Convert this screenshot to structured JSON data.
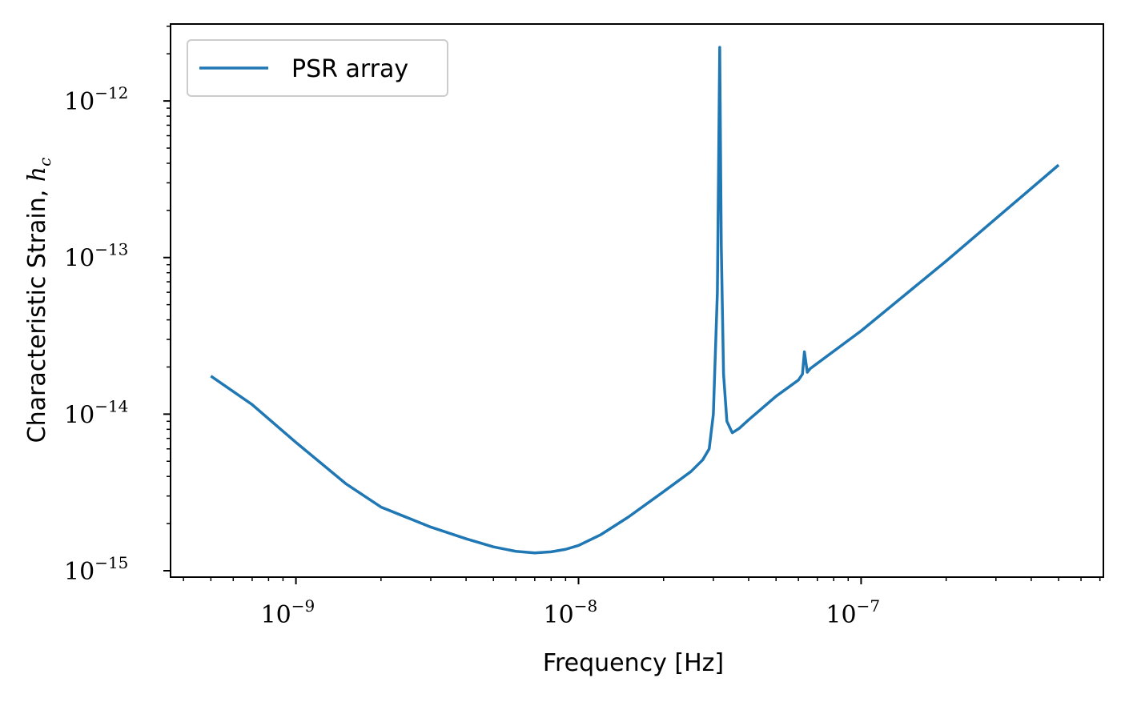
{
  "chart_data": {
    "type": "line",
    "title": "",
    "xlabel": "Frequency [Hz]",
    "ylabel_text": "Characteristic Strain, ",
    "ylabel_symbol": "h",
    "ylabel_subscript": "c",
    "xscale": "log",
    "yscale": "log",
    "xlim": [
      3.6e-10,
      7.2e-07
    ],
    "ylim": [
      9.1e-16,
      3.1e-12
    ],
    "xticks": [
      {
        "base": "10",
        "exp": "−9",
        "value": 1e-09
      },
      {
        "base": "10",
        "exp": "−8",
        "value": 1e-08
      },
      {
        "base": "10",
        "exp": "−7",
        "value": 1e-07
      }
    ],
    "yticks": [
      {
        "base": "10",
        "exp": "−15",
        "value": 1e-15
      },
      {
        "base": "10",
        "exp": "−14",
        "value": 1e-14
      },
      {
        "base": "10",
        "exp": "−13",
        "value": 1e-13
      },
      {
        "base": "10",
        "exp": "−12",
        "value": 1e-12
      }
    ],
    "grid": false,
    "legend_position": "top-left",
    "series": [
      {
        "name": "PSR array",
        "color": "#1f77b4",
        "x": [
          5e-10,
          7e-10,
          1e-09,
          1.5e-09,
          2e-09,
          3e-09,
          4e-09,
          5e-09,
          6e-09,
          7e-09,
          8e-09,
          9e-09,
          1e-08,
          1.2e-08,
          1.5e-08,
          2e-08,
          2.5e-08,
          2.75e-08,
          2.9e-08,
          3e-08,
          3.1e-08,
          3.16e-08,
          3.2e-08,
          3.26e-08,
          3.35e-08,
          3.5e-08,
          3.7e-08,
          4e-08,
          5e-08,
          6e-08,
          6.2e-08,
          6.3e-08,
          6.45e-08,
          6.6e-08,
          1e-07,
          2e-07,
          5e-07
        ],
        "y": [
          1.75e-14,
          1.15e-14,
          6.6e-15,
          3.6e-15,
          2.55e-15,
          1.9e-15,
          1.6e-15,
          1.42e-15,
          1.33e-15,
          1.3e-15,
          1.32e-15,
          1.37e-15,
          1.45e-15,
          1.7e-15,
          2.2e-15,
          3.2e-15,
          4.3e-15,
          5.1e-15,
          6e-15,
          1e-14,
          6e-14,
          2.2e-12,
          1.2e-13,
          1.8e-14,
          9e-15,
          7.6e-15,
          8.1e-15,
          9.2e-15,
          1.3e-14,
          1.65e-14,
          1.8e-14,
          2.5e-14,
          1.85e-14,
          1.95e-14,
          3.4e-14,
          9.5e-14,
          3.9e-13
        ]
      }
    ]
  }
}
